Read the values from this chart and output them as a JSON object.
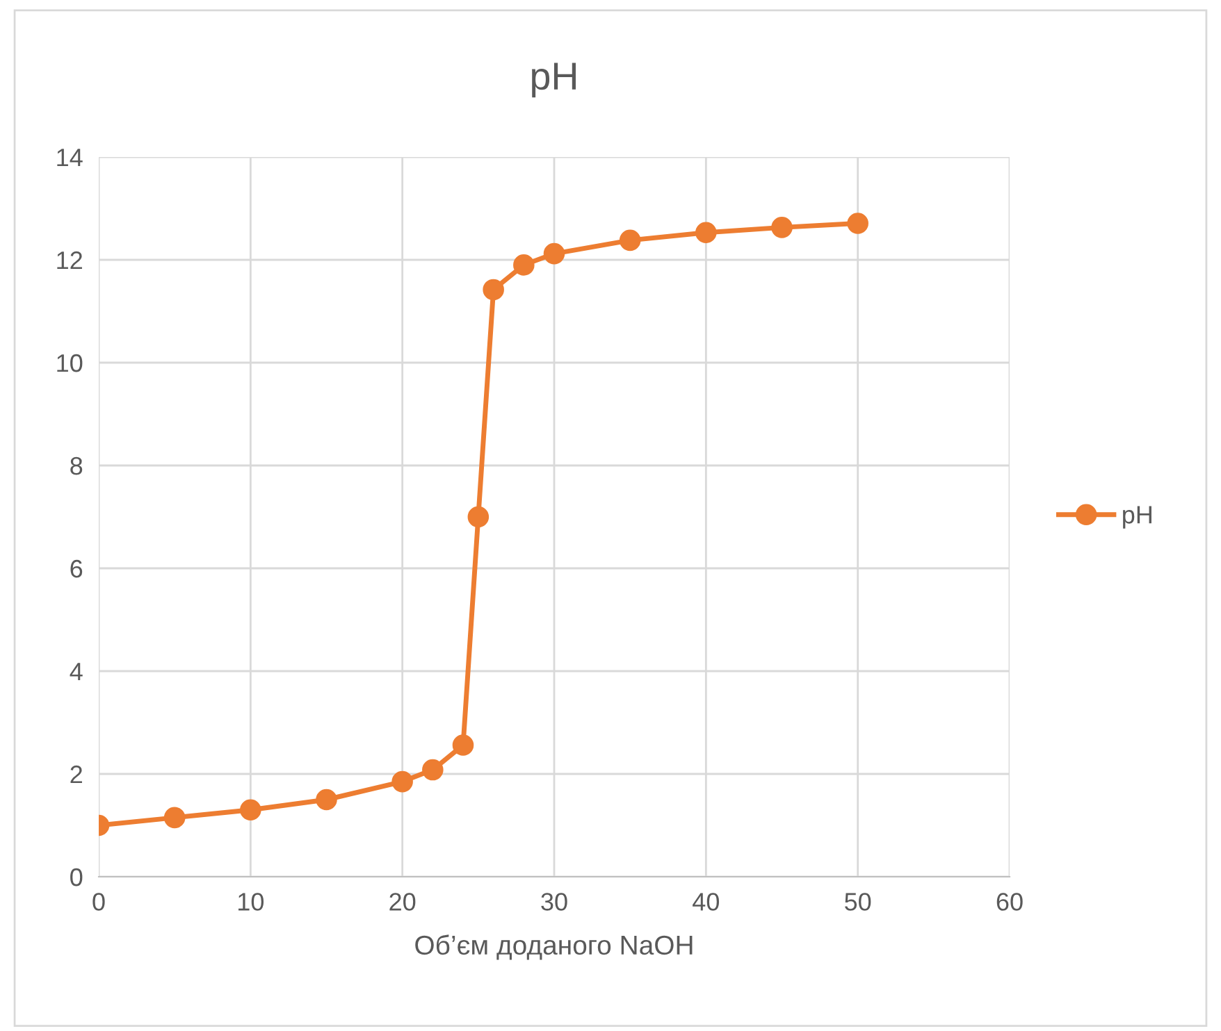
{
  "chart_data": {
    "type": "line",
    "title": "pH",
    "xlabel": "Об’єм доданого NaOH",
    "x": [
      0,
      5,
      10,
      15,
      20,
      22,
      24,
      25,
      26,
      28,
      30,
      35,
      40,
      45,
      50
    ],
    "series": [
      {
        "name": "pH",
        "color": "#ed7d31",
        "values": [
          1.0,
          1.15,
          1.3,
          1.5,
          1.85,
          2.08,
          2.56,
          7.0,
          11.42,
          11.9,
          12.12,
          12.38,
          12.53,
          12.63,
          12.71
        ]
      }
    ],
    "xlim": [
      0,
      60
    ],
    "xticks": [
      0,
      10,
      20,
      30,
      40,
      50,
      60
    ],
    "ylim": [
      0,
      14
    ],
    "yticks": [
      0,
      2,
      4,
      6,
      8,
      10,
      12,
      14
    ],
    "grid": true,
    "legend": "right",
    "marker": "circle",
    "line_style": "solid"
  }
}
